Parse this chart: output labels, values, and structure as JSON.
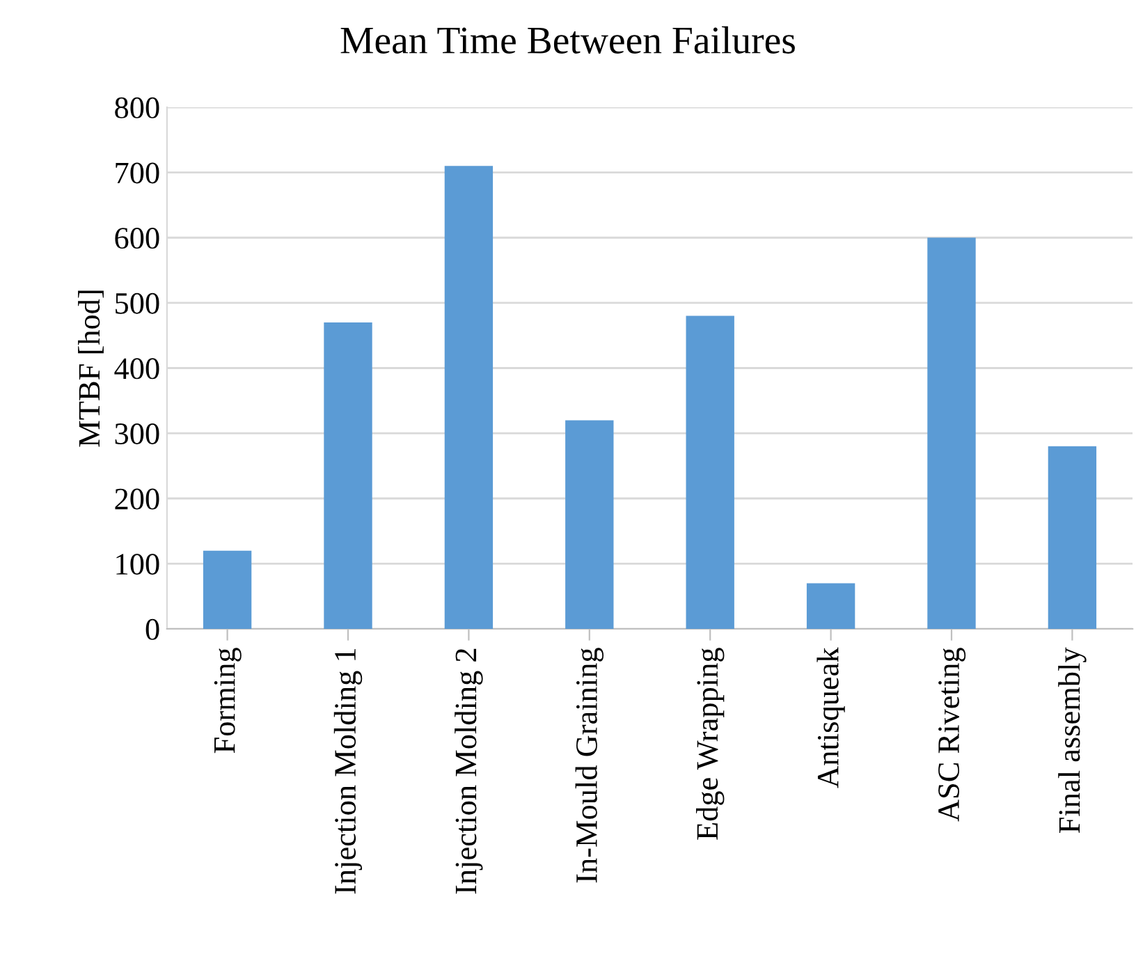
{
  "chart_data": {
    "type": "bar",
    "title": "Mean Time Between Failures",
    "ylabel": "MTBF [hod]",
    "categories": [
      "Forming",
      "Injection Molding 1",
      "Injection Molding 2",
      "In-Mould Graining",
      "Edge Wrapping",
      "Antisqueak",
      "ASC Riveting",
      "Final assembly"
    ],
    "values": [
      120,
      470,
      710,
      320,
      480,
      70,
      600,
      280
    ],
    "color": "#5b9bd5",
    "ylim": [
      0,
      800
    ],
    "yticks": [
      0,
      100,
      200,
      300,
      400,
      500,
      600,
      700,
      800
    ],
    "grid": "y"
  }
}
